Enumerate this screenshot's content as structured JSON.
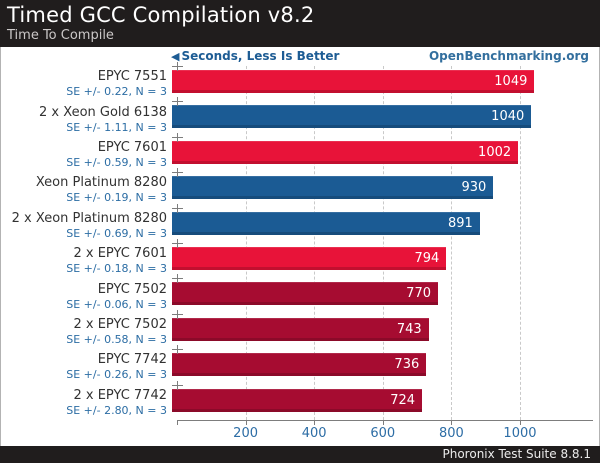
{
  "header": {
    "title": "Timed GCC Compilation v8.2",
    "subtitle": "Time To Compile"
  },
  "subbar": {
    "axis_note": "Seconds, Less Is Better",
    "arrow_icon": "◀",
    "site": "OpenBenchmarking.org"
  },
  "footer": {
    "credit": "Phoronix Test Suite 8.8.1"
  },
  "chart_data": {
    "type": "bar",
    "orientation": "horizontal",
    "title": "Timed GCC Compilation v8.2",
    "subtitle": "Time To Compile",
    "xlabel": "Seconds, Less Is Better",
    "unit": "Seconds",
    "xlim": [
      0,
      1210
    ],
    "xticks": [
      200,
      400,
      600,
      800,
      1000
    ],
    "grid": "dashed-vertical",
    "rows": [
      {
        "label": "EPYC 7551",
        "se": "SE +/- 0.22, N = 3",
        "value": 1049,
        "color": "red"
      },
      {
        "label": "2 x Xeon Gold 6138",
        "se": "SE +/- 1.11, N = 3",
        "value": 1040,
        "color": "blue"
      },
      {
        "label": "EPYC 7601",
        "se": "SE +/- 0.59, N = 3",
        "value": 1002,
        "color": "red"
      },
      {
        "label": "Xeon Platinum 8280",
        "se": "SE +/- 0.19, N = 3",
        "value": 930,
        "color": "blue"
      },
      {
        "label": "2 x Xeon Platinum 8280",
        "se": "SE +/- 0.69, N = 3",
        "value": 891,
        "color": "blue"
      },
      {
        "label": "2 x EPYC 7601",
        "se": "SE +/- 0.18, N = 3",
        "value": 794,
        "color": "red"
      },
      {
        "label": "EPYC 7502",
        "se": "SE +/- 0.06, N = 3",
        "value": 770,
        "color": "darkred"
      },
      {
        "label": "2 x EPYC 7502",
        "se": "SE +/- 0.58, N = 3",
        "value": 743,
        "color": "darkred"
      },
      {
        "label": "EPYC 7742",
        "se": "SE +/- 0.26, N = 3",
        "value": 736,
        "color": "darkred"
      },
      {
        "label": "2 x EPYC 7742",
        "se": "SE +/- 2.80, N = 3",
        "value": 724,
        "color": "darkred"
      }
    ],
    "colors": {
      "red": "#e81339",
      "blue": "#1b5b94",
      "darkred": "#a60c31"
    },
    "accent_colors": {
      "link_blue": "#336f9e",
      "se_text_blue": "#2c6da4",
      "tick_label_blue": "#2d6da5",
      "header_bg": "#201d1d"
    }
  }
}
